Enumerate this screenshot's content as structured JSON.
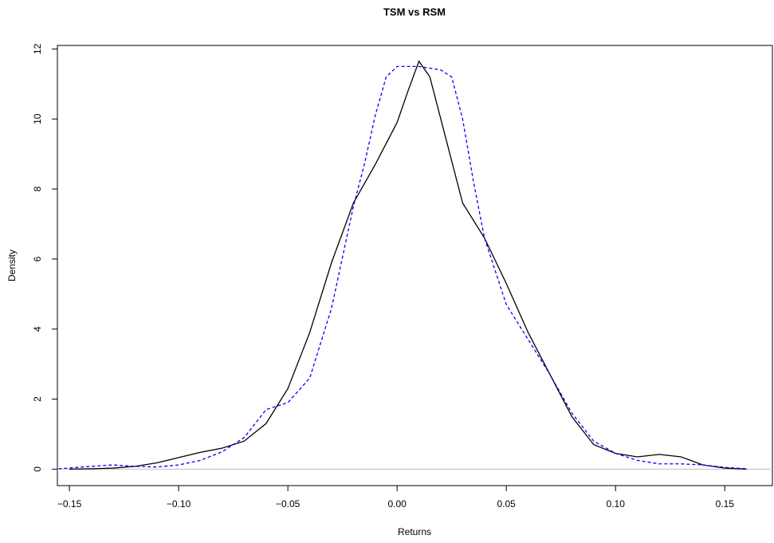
{
  "chart_data": {
    "type": "line",
    "title": "TSM vs RSM",
    "x_label": "Returns",
    "y_label": "Density",
    "xlim": [
      -0.1555,
      0.1718
    ],
    "ylim": [
      -0.47,
      12.1
    ],
    "xticks": [
      {
        "value": -0.15,
        "label": "−0.15"
      },
      {
        "value": -0.1,
        "label": "−0.10"
      },
      {
        "value": -0.05,
        "label": "−0.05"
      },
      {
        "value": 0,
        "label": "0.00"
      },
      {
        "value": 0.05,
        "label": "0.05"
      },
      {
        "value": 0.1,
        "label": "0.10"
      },
      {
        "value": 0.15,
        "label": "0.15"
      }
    ],
    "yticks": [
      0,
      2,
      4,
      6,
      8,
      10,
      12
    ],
    "zero_line": true,
    "series": [
      {
        "name": "TSM",
        "color": "#000000",
        "line_style": "solid",
        "x": [
          -0.15,
          -0.14,
          -0.13,
          -0.12,
          -0.11,
          -0.1,
          -0.09,
          -0.08,
          -0.07,
          -0.06,
          -0.05,
          -0.04,
          -0.03,
          -0.02,
          -0.01,
          0,
          0.005,
          0.01,
          0.015,
          0.02,
          0.03,
          0.04,
          0.05,
          0.06,
          0.07,
          0.08,
          0.09,
          0.1,
          0.11,
          0.12,
          0.13,
          0.14,
          0.15,
          0.16
        ],
        "values": [
          0,
          0.01,
          0.03,
          0.08,
          0.18,
          0.33,
          0.48,
          0.6,
          0.8,
          1.3,
          2.3,
          3.9,
          5.9,
          7.6,
          8.7,
          9.9,
          10.8,
          11.65,
          11.2,
          10.0,
          7.6,
          6.6,
          5.3,
          3.9,
          2.7,
          1.5,
          0.7,
          0.45,
          0.35,
          0.42,
          0.35,
          0.12,
          0.03,
          0
        ]
      },
      {
        "name": "RSM",
        "color": "#0000ff",
        "line_style": "dashed",
        "x": [
          -0.155,
          -0.14,
          -0.13,
          -0.12,
          -0.11,
          -0.1,
          -0.09,
          -0.08,
          -0.07,
          -0.06,
          -0.05,
          -0.04,
          -0.03,
          -0.02,
          -0.015,
          -0.01,
          -0.005,
          0,
          0.01,
          0.02,
          0.025,
          0.03,
          0.035,
          0.04,
          0.05,
          0.06,
          0.07,
          0.08,
          0.09,
          0.1,
          0.11,
          0.12,
          0.13,
          0.14,
          0.15,
          0.16
        ],
        "values": [
          0.01,
          0.08,
          0.12,
          0.08,
          0.06,
          0.12,
          0.25,
          0.5,
          0.9,
          1.7,
          1.9,
          2.6,
          4.6,
          7.5,
          8.7,
          10.1,
          11.2,
          11.5,
          11.5,
          11.4,
          11.2,
          10.0,
          8.2,
          6.6,
          4.7,
          3.7,
          2.7,
          1.6,
          0.8,
          0.45,
          0.25,
          0.15,
          0.15,
          0.12,
          0.05,
          0.01
        ]
      }
    ]
  }
}
